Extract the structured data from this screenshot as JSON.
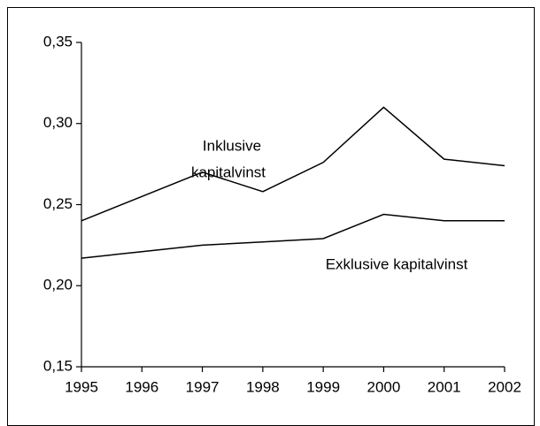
{
  "chart_data": {
    "type": "line",
    "categories": [
      "1995",
      "1996",
      "1997",
      "1998",
      "1999",
      "2000",
      "2001",
      "2002"
    ],
    "series": [
      {
        "name": "Inklusive kapitalvinst",
        "color": "#000000",
        "values": [
          0.24,
          0.255,
          0.27,
          0.258,
          0.276,
          0.31,
          0.278,
          0.274
        ]
      },
      {
        "name": "Exklusive kapitalvinst",
        "color": "#000000",
        "values": [
          0.217,
          0.221,
          0.225,
          0.227,
          0.229,
          0.244,
          0.24,
          0.24
        ]
      }
    ],
    "annotations": [
      "Inklusive",
      "kapitalvinst",
      "Exklusive kapitalvinst"
    ],
    "ylim": [
      0.15,
      0.35
    ],
    "yticks": [
      {
        "value": 0.15,
        "label": "0,15"
      },
      {
        "value": 0.2,
        "label": "0,20"
      },
      {
        "value": 0.25,
        "label": "0,25"
      },
      {
        "value": 0.3,
        "label": "0,30"
      },
      {
        "value": 0.35,
        "label": "0,35"
      }
    ],
    "grid": false
  }
}
